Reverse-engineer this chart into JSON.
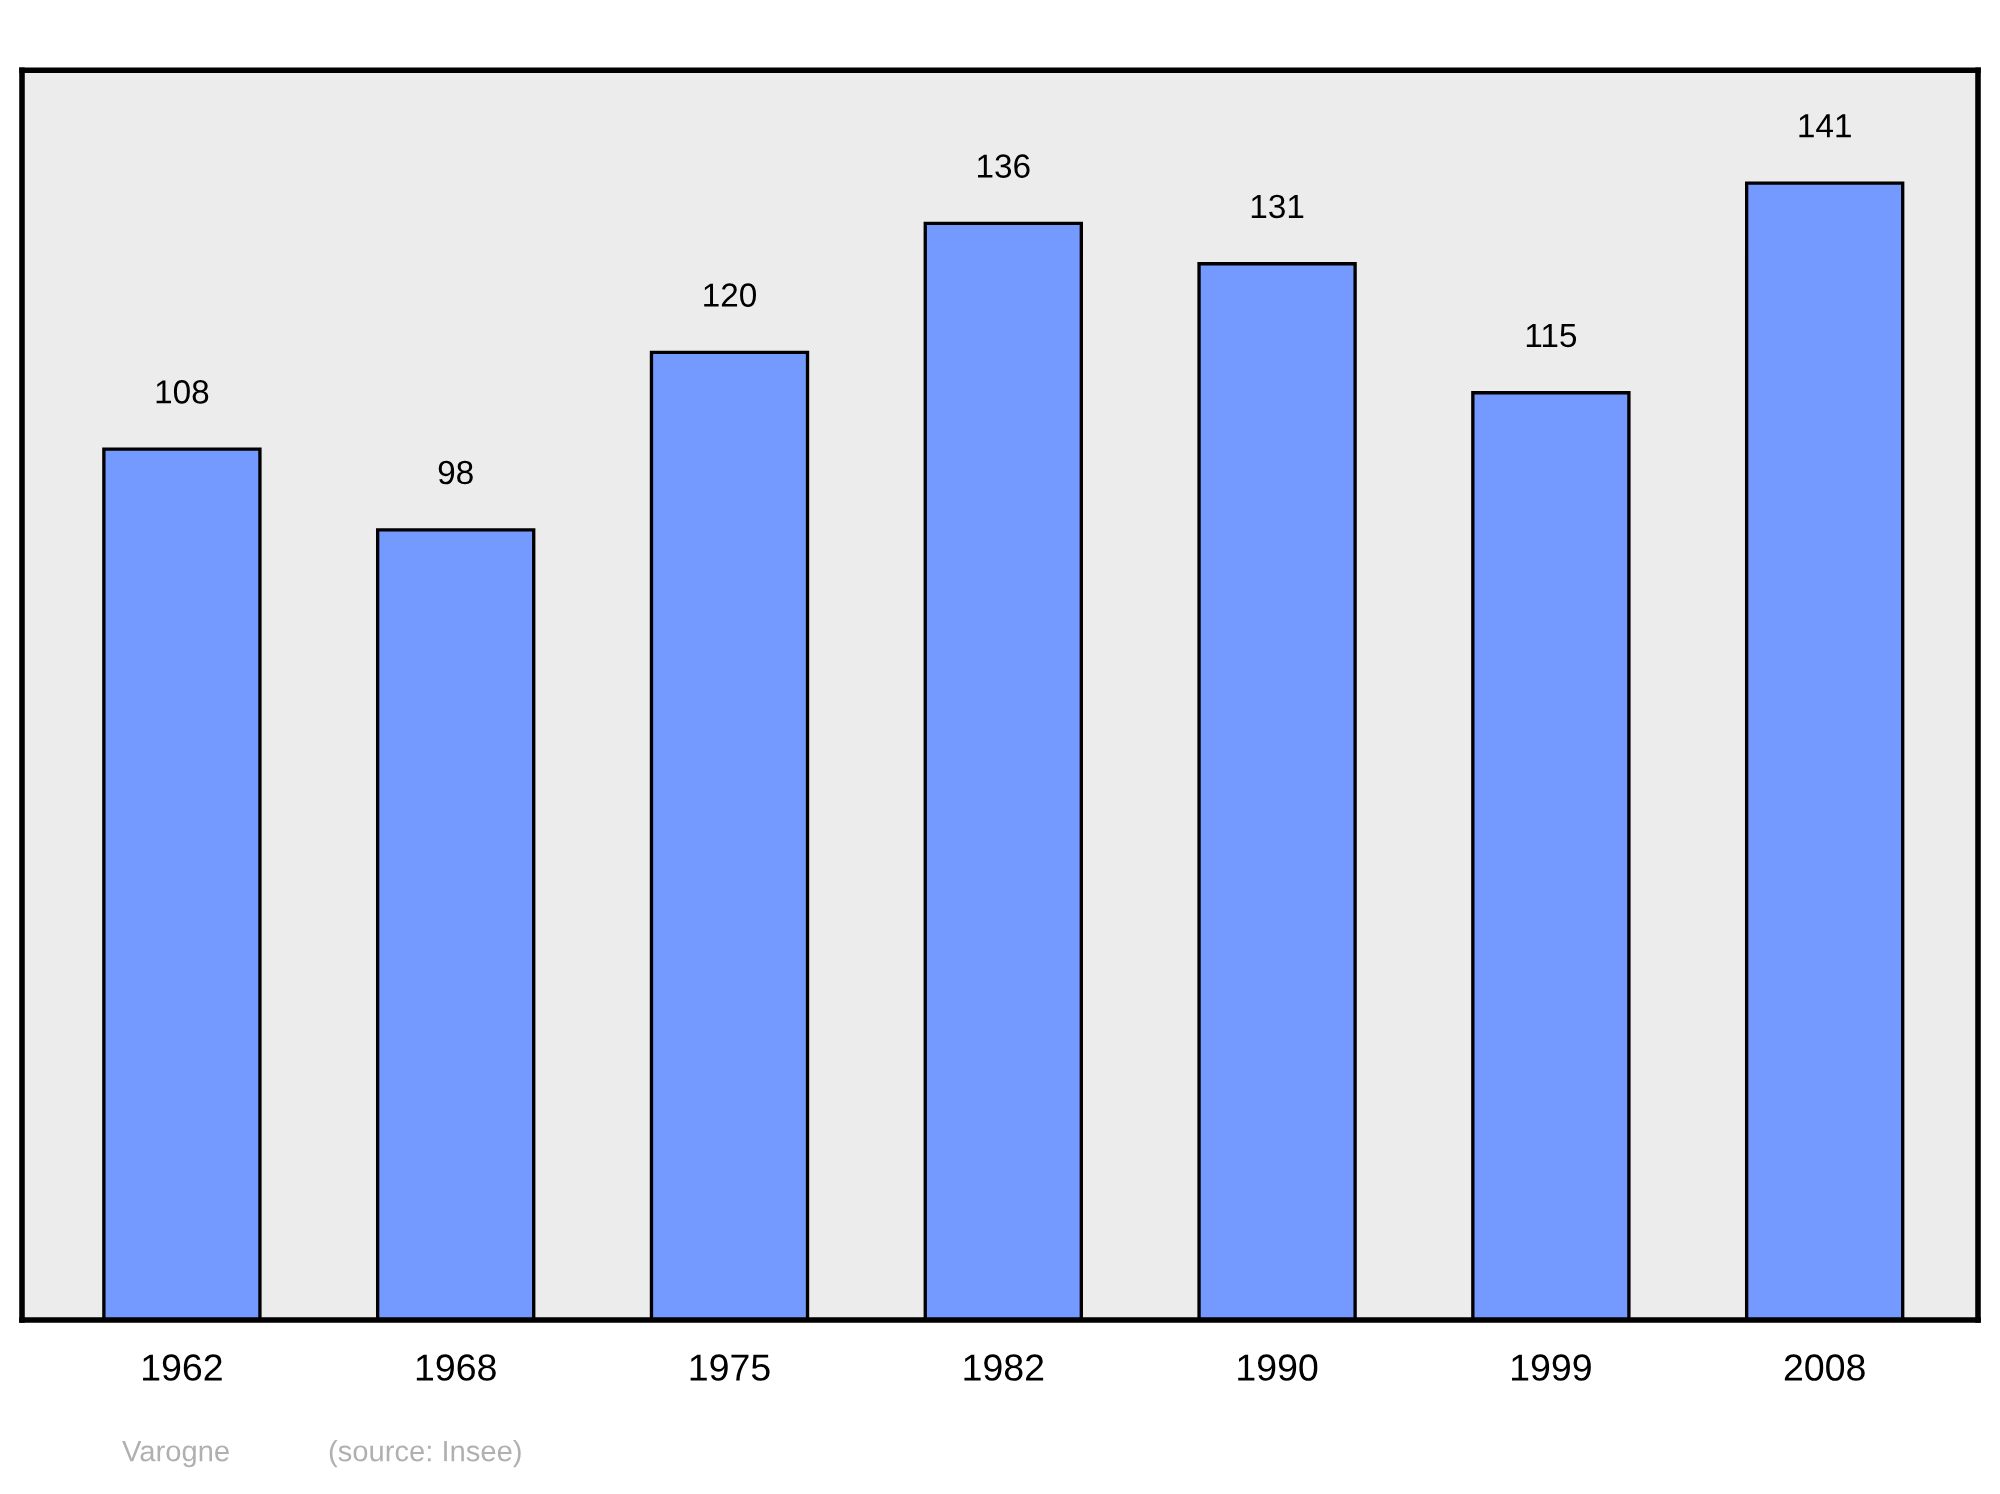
{
  "chart_data": {
    "type": "bar",
    "categories": [
      "1962",
      "1968",
      "1975",
      "1982",
      "1990",
      "1999",
      "2008"
    ],
    "values": [
      108,
      98,
      120,
      136,
      131,
      115,
      141
    ],
    "color": "#7499ff",
    "ylim": [
      0,
      155
    ],
    "data_labels": true,
    "grid": false,
    "legend": false,
    "tick_labels": "x",
    "annotations": [
      "Varogne",
      "(source: Insee)"
    ]
  }
}
